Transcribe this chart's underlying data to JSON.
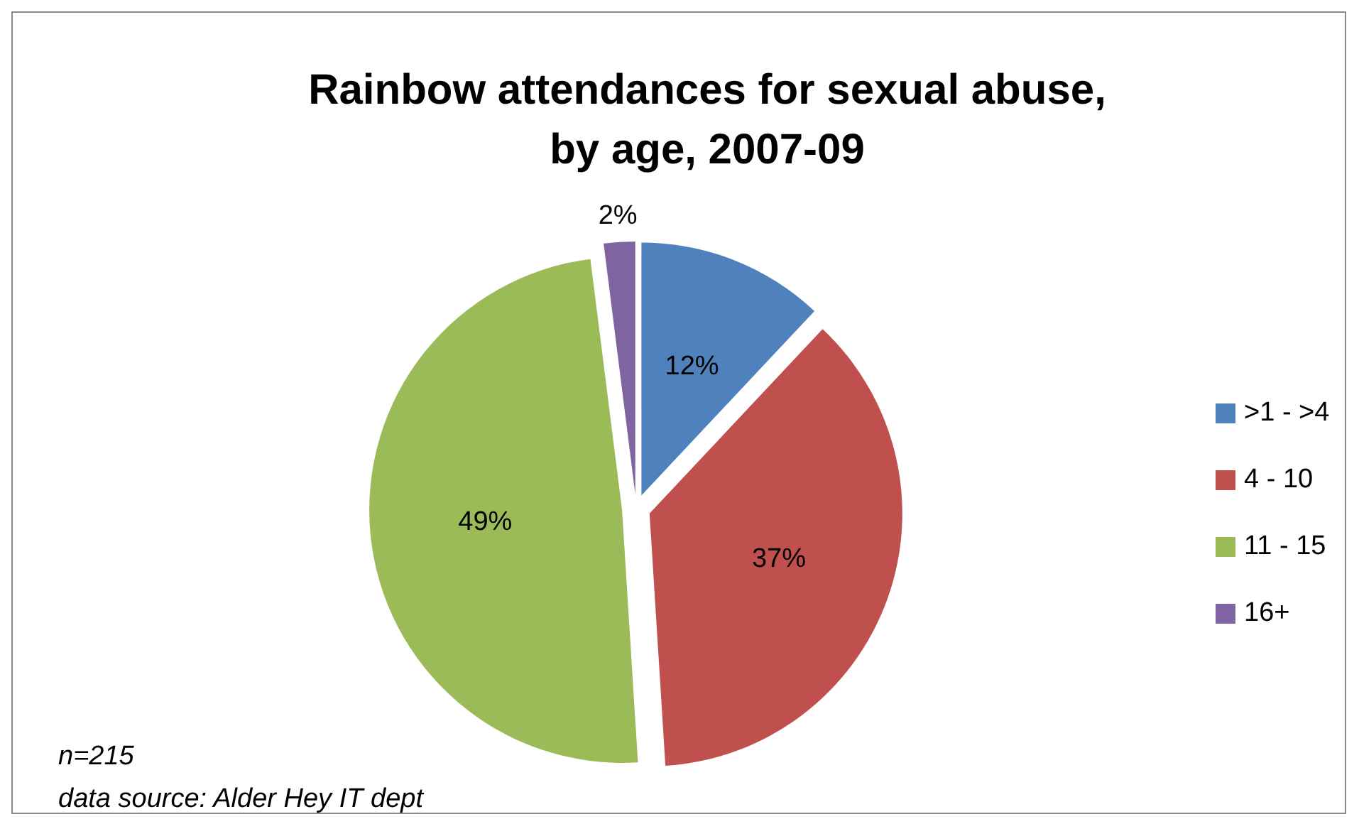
{
  "chart_data": {
    "type": "pie",
    "title": "Rainbow attendances for sexual abuse,\nby age, 2007-09",
    "categories": [
      ">1 - >4",
      "4 - 10",
      "11 - 15",
      "16+"
    ],
    "values": [
      12,
      37,
      49,
      2
    ],
    "colors": [
      "#4f81bd",
      "#c0504d",
      "#9bbb59",
      "#8064a2"
    ],
    "value_labels": [
      "12%",
      "37%",
      "49%",
      "2%"
    ],
    "legend": "right",
    "annotations": [
      "n=215",
      "data source: Alder Hey IT dept"
    ]
  }
}
